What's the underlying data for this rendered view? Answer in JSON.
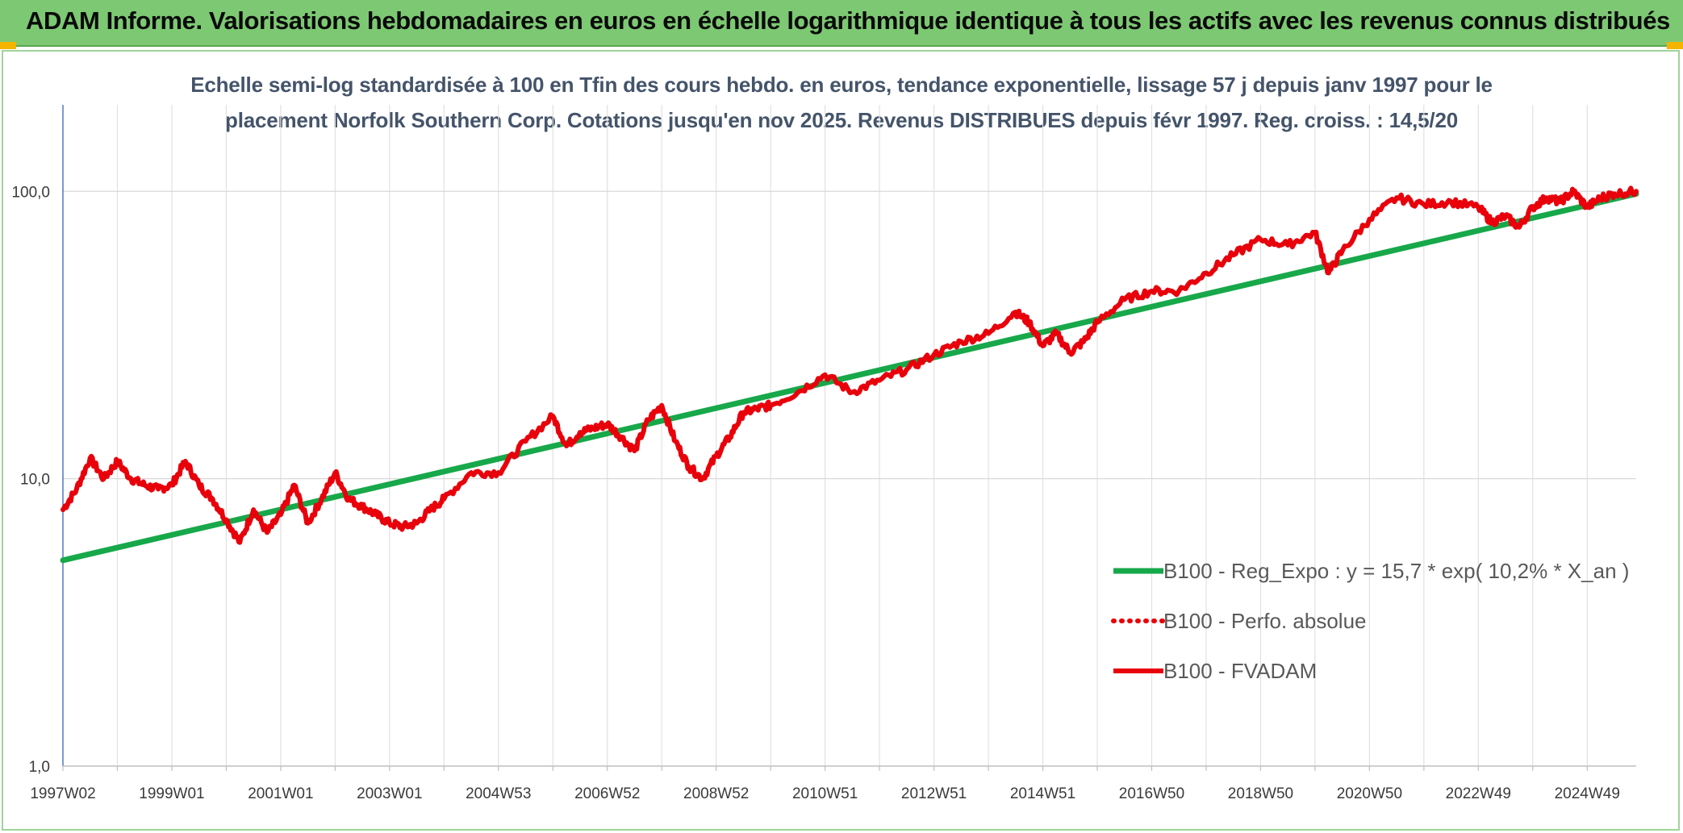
{
  "header": {
    "title": "ADAM Informe. Valorisations hebdomadaires en euros en échelle logarithmique identique à tous les actifs avec les revenus connus distribués"
  },
  "chart_data": {
    "type": "line",
    "title_line1": "Echelle semi-log standardisée à 100 en Tfin des cours hebdo. en euros, tendance exponentielle, lissage 57 j depuis janv 1997 pour le",
    "title_line2": "placement Norfolk Southern Corp. Cotations jusqu'en nov 2025. Revenus DISTRIBUES depuis févr 1997. Reg. croiss. : 14,5/20",
    "y_scale": "log",
    "ylim": [
      1,
      100
    ],
    "y_max_plot": 200,
    "y_ticks": [
      {
        "value": 1,
        "label": "1,0"
      },
      {
        "value": 10,
        "label": "10,0"
      },
      {
        "value": 100,
        "label": "100,0"
      }
    ],
    "xlim": [
      1997.0,
      2025.9
    ],
    "x_ticks": [
      {
        "value": 1997.0,
        "label": "1997W02"
      },
      {
        "value": 1999.0,
        "label": "1999W01"
      },
      {
        "value": 2001.0,
        "label": "2001W01"
      },
      {
        "value": 2003.0,
        "label": "2003W01"
      },
      {
        "value": 2005.0,
        "label": "2004W53"
      },
      {
        "value": 2007.0,
        "label": "2006W52"
      },
      {
        "value": 2009.0,
        "label": "2008W52"
      },
      {
        "value": 2011.0,
        "label": "2010W51"
      },
      {
        "value": 2013.0,
        "label": "2012W51"
      },
      {
        "value": 2015.0,
        "label": "2014W51"
      },
      {
        "value": 2017.0,
        "label": "2016W50"
      },
      {
        "value": 2019.0,
        "label": "2018W50"
      },
      {
        "value": 2021.0,
        "label": "2020W50"
      },
      {
        "value": 2023.0,
        "label": "2022W49"
      },
      {
        "value": 2025.0,
        "label": "2024W49"
      }
    ],
    "legend_position": "bottom-right",
    "grid": true,
    "series": [
      {
        "name": "B100 - Reg_Expo : y = 15,7 * exp( 10,2% *  X_an )",
        "color": "#17a84a",
        "style": "solid",
        "x": [
          1997.0,
          2025.9
        ],
        "y": [
          5.2,
          98
        ]
      },
      {
        "name": "B100 - Perfo. absolue",
        "color": "#e8000b",
        "style": "dotted",
        "x": [],
        "y": []
      },
      {
        "name": "B100 - FVADAM",
        "color": "#e8000b",
        "style": "solid",
        "x": [
          1997.0,
          1997.25,
          1997.5,
          1997.75,
          1998.0,
          1998.25,
          1998.5,
          1998.75,
          1999.0,
          1999.25,
          1999.5,
          1999.75,
          2000.0,
          2000.25,
          2000.5,
          2000.75,
          2001.0,
          2001.25,
          2001.5,
          2001.75,
          2002.0,
          2002.25,
          2002.5,
          2002.75,
          2003.0,
          2003.25,
          2003.5,
          2003.75,
          2004.0,
          2004.5,
          2005.0,
          2005.5,
          2006.0,
          2006.25,
          2006.5,
          2006.75,
          2007.0,
          2007.25,
          2007.5,
          2007.75,
          2008.0,
          2008.25,
          2008.5,
          2008.75,
          2009.0,
          2009.25,
          2009.5,
          2009.75,
          2010.0,
          2010.5,
          2011.0,
          2011.5,
          2012.0,
          2012.5,
          2013.0,
          2013.5,
          2014.0,
          2014.5,
          2014.75,
          2015.0,
          2015.25,
          2015.5,
          2015.75,
          2016.0,
          2016.5,
          2017.0,
          2017.5,
          2018.0,
          2018.5,
          2019.0,
          2019.5,
          2020.0,
          2020.25,
          2020.5,
          2021.0,
          2021.5,
          2022.0,
          2022.5,
          2023.0,
          2023.25,
          2023.5,
          2023.75,
          2024.0,
          2024.25,
          2024.5,
          2024.75,
          2025.0,
          2025.25,
          2025.5,
          2025.9
        ],
        "y": [
          7.8,
          9.2,
          11.8,
          10.0,
          11.5,
          10.0,
          9.5,
          9.2,
          9.5,
          11.5,
          9.5,
          8.5,
          7.2,
          6.0,
          7.8,
          6.5,
          7.5,
          9.5,
          7.0,
          8.5,
          10.5,
          8.5,
          8.0,
          7.5,
          7.0,
          6.8,
          7.0,
          7.8,
          8.5,
          10.5,
          10.5,
          13.5,
          16.5,
          13.0,
          14.5,
          15.0,
          15.5,
          14.0,
          12.5,
          16.0,
          18.0,
          13.5,
          11.0,
          10.0,
          12.0,
          14.0,
          17.0,
          17.5,
          18.0,
          20.0,
          23.0,
          20.0,
          22.0,
          24.0,
          27.0,
          30.0,
          32.0,
          38.0,
          35.0,
          29.0,
          32.0,
          27.5,
          30.0,
          35.0,
          42.0,
          45.0,
          45.0,
          52.0,
          60.0,
          68.0,
          65.0,
          72.0,
          52.0,
          62.0,
          80.0,
          95.0,
          90.0,
          92.0,
          88.0,
          78.0,
          82.0,
          75.0,
          88.0,
          95.0,
          92.0,
          100.0,
          88.0,
          95.0,
          98.0,
          100.0
        ]
      }
    ]
  }
}
